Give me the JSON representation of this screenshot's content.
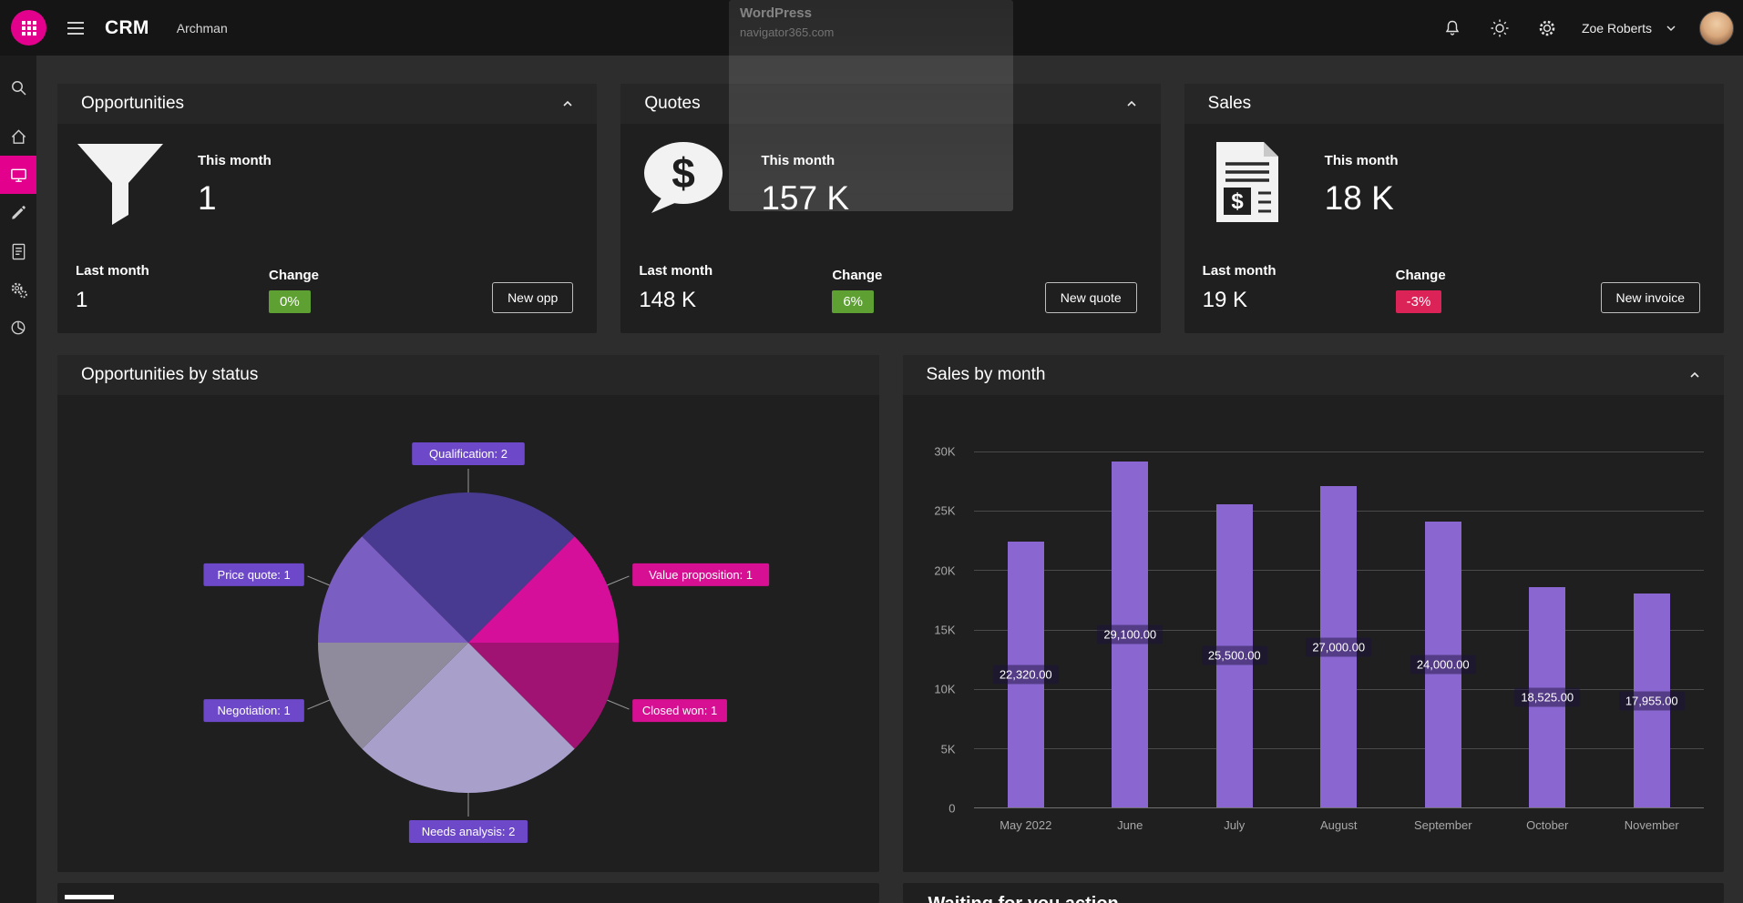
{
  "topbar": {
    "app_title": "CRM",
    "org_name": "Archman",
    "user_name": "Zoe Roberts"
  },
  "overlay": {
    "line1": "WordPress",
    "line2": "navigator365.com"
  },
  "sidebar": {
    "items": [
      "search-icon",
      "home-icon",
      "monitor-icon",
      "pencil-icon",
      "document-icon",
      "gears-icon",
      "pie-chart-icon"
    ],
    "active_item": "monitor-icon"
  },
  "colors": {
    "accent": "#e3008c",
    "positive": "#5ea032",
    "negative": "#dc2357",
    "bar": "#8a67d0"
  },
  "kpi": {
    "cards": [
      {
        "title": "Opportunities",
        "icon": "funnel-icon",
        "this_month_label": "This month",
        "this_month_value": "1",
        "last_month_label": "Last month",
        "last_month_value": "1",
        "change_label": "Change",
        "change_value": "0%",
        "change_type": "positive",
        "button_label": "New opp"
      },
      {
        "title": "Quotes",
        "icon": "dollar-bubble-icon",
        "this_month_label": "This month",
        "this_month_value": "157 K",
        "last_month_label": "Last month",
        "last_month_value": "148 K",
        "change_label": "Change",
        "change_value": "6%",
        "change_type": "positive",
        "button_label": "New quote"
      },
      {
        "title": "Sales",
        "icon": "invoice-icon",
        "this_month_label": "This month",
        "this_month_value": "18 K",
        "last_month_label": "Last month",
        "last_month_value": "19 K",
        "change_label": "Change",
        "change_value": "-3%",
        "change_type": "negative",
        "button_label": "New invoice"
      }
    ]
  },
  "sections": {
    "pie_title": "Opportunities by status",
    "bar_title": "Sales by month",
    "waiting_title": "Waiting for you action"
  },
  "chart_data": [
    {
      "type": "pie",
      "title": "Opportunities by status",
      "start_angle": -45,
      "legend_position": "callout-labels",
      "slices": [
        {
          "label": "Qualification",
          "value": 2,
          "text": "Qualification: 2",
          "color": "#473a90",
          "label_bg": "#6d48c8"
        },
        {
          "label": "Value proposition",
          "value": 1,
          "text": "Value proposition: 1",
          "color": "#d50f9a",
          "label_bg": "#d60f93"
        },
        {
          "label": "Closed won",
          "value": 1,
          "text": "Closed won: 1",
          "color": "#a01372",
          "label_bg": "#d60f93"
        },
        {
          "label": "Needs analysis",
          "value": 2,
          "text": "Needs analysis: 2",
          "color": "#a89fcb",
          "label_bg": "#6d48c8"
        },
        {
          "label": "Negotiation",
          "value": 1,
          "text": "Negotiation: 1",
          "color": "#8f8a9c",
          "label_bg": "#6d48c8"
        },
        {
          "label": "Price quote",
          "value": 1,
          "text": "Price quote: 1",
          "color": "#7b5ec1",
          "label_bg": "#6d48c8"
        }
      ]
    },
    {
      "type": "bar",
      "title": "Sales by month",
      "categories": [
        "May 2022",
        "June",
        "July",
        "August",
        "September",
        "October",
        "November"
      ],
      "values": [
        22320,
        29100,
        25500,
        27000,
        24000,
        18525,
        17955
      ],
      "bar_labels": [
        "22,320.00",
        "29,100.00",
        "25,500.00",
        "27,000.00",
        "24,000.00",
        "18,525.00",
        "17,955.00"
      ],
      "y_ticks": [
        "30K",
        "25K",
        "20K",
        "15K",
        "10K",
        "5K",
        "0"
      ],
      "ylim": [
        0,
        30000
      ],
      "xlabel": "",
      "ylabel": "",
      "grid": true,
      "bar_color": "#8a67d0"
    }
  ]
}
